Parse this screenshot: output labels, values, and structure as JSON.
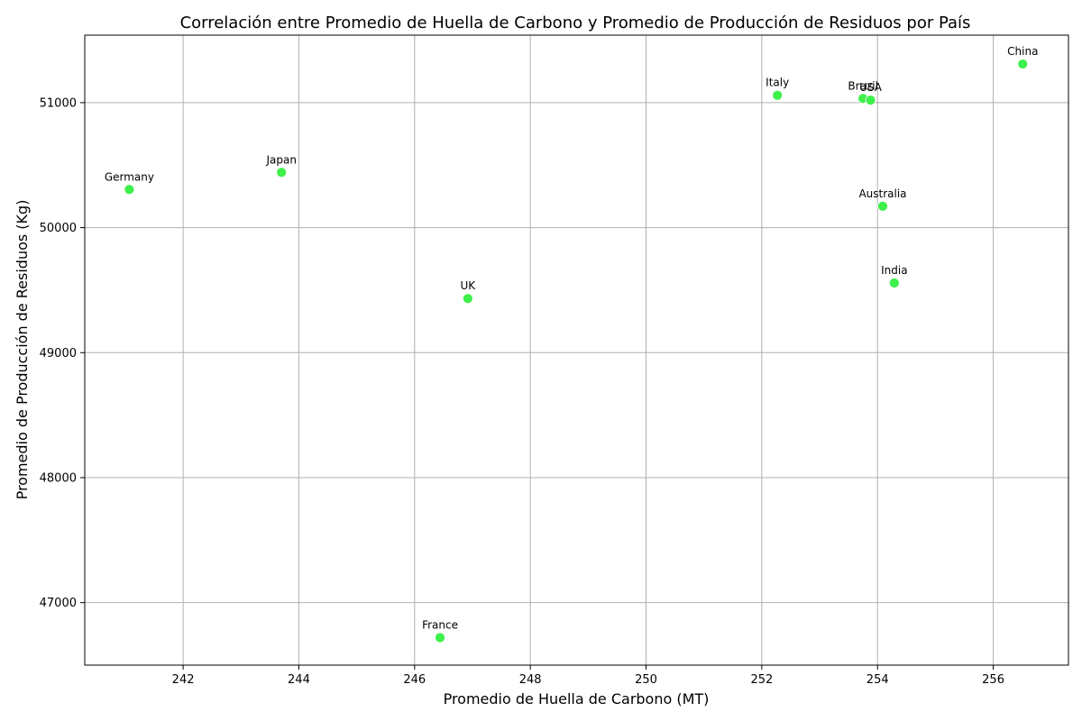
{
  "chart_data": {
    "type": "scatter",
    "title": "Correlación entre Promedio de Huella de Carbono y Promedio de Producción de Residuos por País",
    "xlabel": "Promedio de Huella de Carbono (MT)",
    "ylabel": "Promedio de Producción de Residuos (Kg)",
    "xlim": [
      240.3,
      257.3
    ],
    "ylim": [
      46500,
      51540
    ],
    "xticks": [
      242,
      244,
      246,
      248,
      250,
      252,
      254,
      256
    ],
    "yticks": [
      47000,
      48000,
      49000,
      50000,
      51000
    ],
    "grid": true,
    "marker_color": "#3ef04a",
    "points": [
      {
        "label": "Germany",
        "x": 241.07,
        "y": 50305
      },
      {
        "label": "Japan",
        "x": 243.7,
        "y": 50442
      },
      {
        "label": "UK",
        "x": 246.92,
        "y": 49433
      },
      {
        "label": "France",
        "x": 246.44,
        "y": 46720
      },
      {
        "label": "Italy",
        "x": 252.27,
        "y": 51059
      },
      {
        "label": "Brazil",
        "x": 253.75,
        "y": 51033
      },
      {
        "label": "USA",
        "x": 253.88,
        "y": 51020
      },
      {
        "label": "Australia",
        "x": 254.09,
        "y": 50171
      },
      {
        "label": "India",
        "x": 254.29,
        "y": 49557
      },
      {
        "label": "China",
        "x": 256.51,
        "y": 51309
      }
    ]
  }
}
